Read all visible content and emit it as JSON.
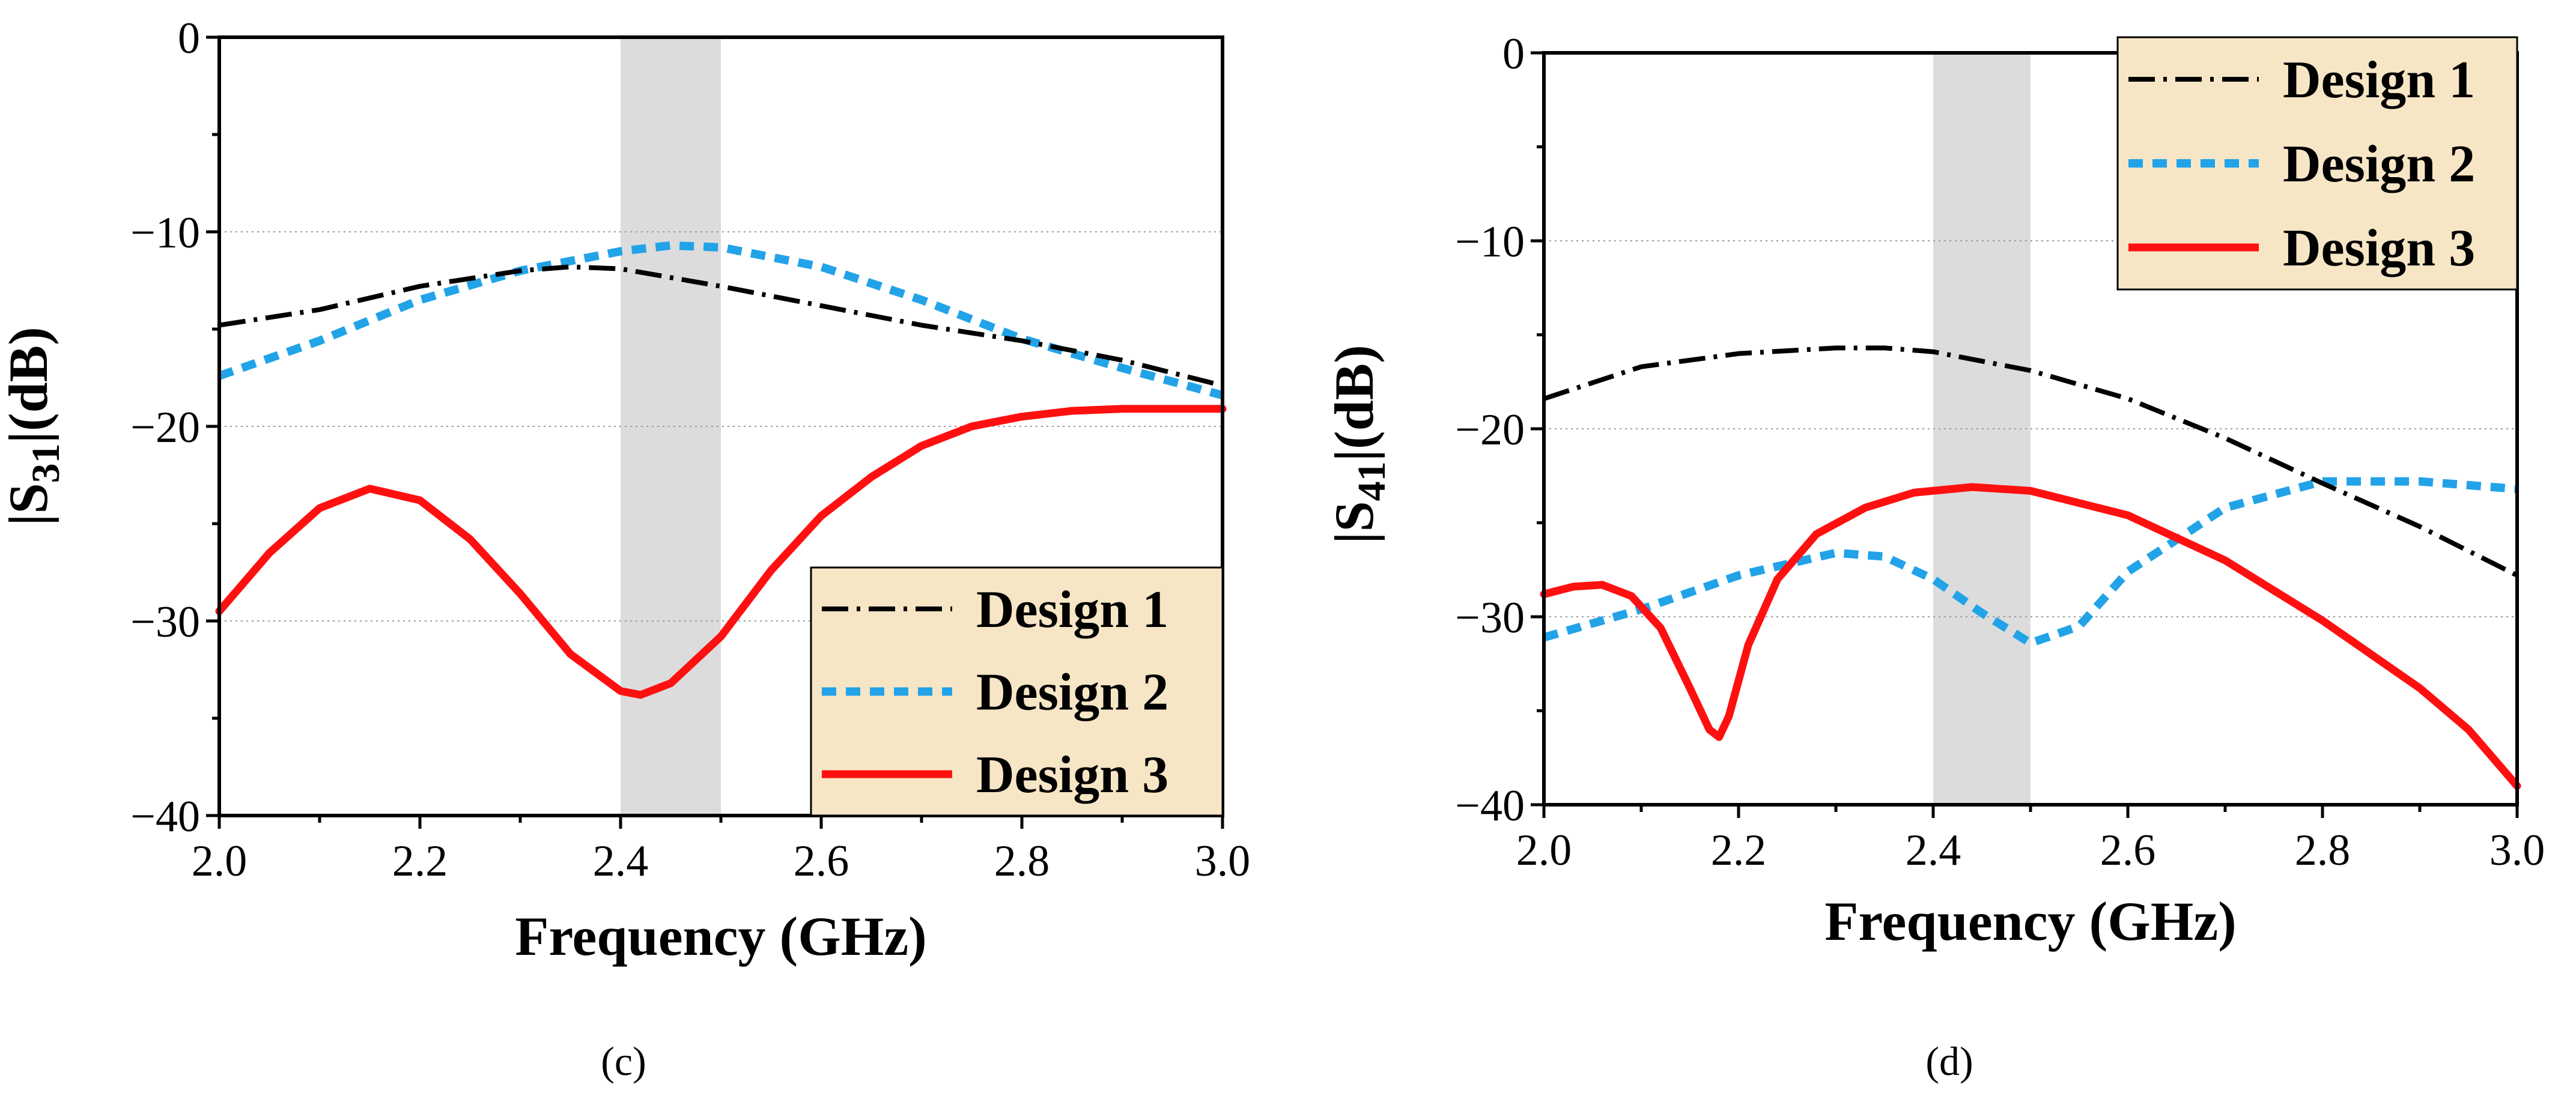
{
  "colors": {
    "design1": "#000000",
    "design2": "#22a3e8",
    "design3": "#ff1010",
    "band": "#dcdcdc",
    "legend_bg": "#f7e6c6"
  },
  "chart_data": [
    {
      "type": "line",
      "panel_label": "(c)",
      "xlabel": "Frequency (GHz)",
      "ylabel_parts": {
        "pre": "|S",
        "sub": "31",
        "post": "|(dB)"
      },
      "xlim": [
        2.0,
        3.0
      ],
      "ylim": [
        -40,
        0
      ],
      "xticks": [
        2.0,
        2.2,
        2.4,
        2.6,
        2.8,
        3.0
      ],
      "xtick_labels": [
        "2.0",
        "2.2",
        "2.4",
        "2.6",
        "2.8",
        "3.0"
      ],
      "yticks": [
        0,
        -10,
        -20,
        -30,
        -40
      ],
      "ytick_labels": [
        "0",
        "−10",
        "−20",
        "−30",
        "−40"
      ],
      "grid_y": [
        -10,
        -20,
        -30
      ],
      "highlight_band": [
        2.4,
        2.5
      ],
      "legend_position": "bottom-right",
      "series": [
        {
          "name": "Design 1",
          "style": "dash-dot",
          "x": [
            2.0,
            2.1,
            2.2,
            2.3,
            2.35,
            2.4,
            2.5,
            2.6,
            2.7,
            2.8,
            2.9,
            3.0
          ],
          "y": [
            -14.8,
            -14.0,
            -12.8,
            -12.0,
            -11.8,
            -11.9,
            -12.8,
            -13.8,
            -14.8,
            -15.6,
            -16.6,
            -17.9
          ]
        },
        {
          "name": "Design 2",
          "style": "dotted",
          "x": [
            2.0,
            2.1,
            2.2,
            2.3,
            2.4,
            2.45,
            2.5,
            2.6,
            2.7,
            2.8,
            2.9,
            3.0
          ],
          "y": [
            -17.4,
            -15.6,
            -13.5,
            -12.0,
            -11.0,
            -10.7,
            -10.8,
            -11.8,
            -13.5,
            -15.5,
            -17.0,
            -18.4
          ]
        },
        {
          "name": "Design 3",
          "style": "solid",
          "x": [
            2.0,
            2.05,
            2.1,
            2.15,
            2.2,
            2.25,
            2.3,
            2.35,
            2.4,
            2.42,
            2.45,
            2.5,
            2.55,
            2.6,
            2.65,
            2.7,
            2.75,
            2.8,
            2.85,
            2.9,
            2.95,
            3.0
          ],
          "y": [
            -29.5,
            -26.5,
            -24.2,
            -23.2,
            -23.8,
            -25.8,
            -28.6,
            -31.7,
            -33.6,
            -33.8,
            -33.2,
            -30.8,
            -27.4,
            -24.6,
            -22.6,
            -21.0,
            -20.0,
            -19.5,
            -19.2,
            -19.1,
            -19.1,
            -19.1
          ]
        }
      ]
    },
    {
      "type": "line",
      "panel_label": "(d)",
      "xlabel": "Frequency (GHz)",
      "ylabel_parts": {
        "pre": "|S",
        "sub": "41",
        "post": "|(dB)"
      },
      "xlim": [
        2.0,
        3.0
      ],
      "ylim": [
        -40,
        0
      ],
      "xticks": [
        2.0,
        2.2,
        2.4,
        2.6,
        2.8,
        3.0
      ],
      "xtick_labels": [
        "2.0",
        "2.2",
        "2.4",
        "2.6",
        "2.8",
        "3.0"
      ],
      "yticks": [
        0,
        -10,
        -20,
        -30,
        -40
      ],
      "ytick_labels": [
        "0",
        "−10",
        "−20",
        "−30",
        "−40"
      ],
      "grid_y": [
        -10,
        -20,
        -30
      ],
      "highlight_band": [
        2.4,
        2.5
      ],
      "legend_position": "top-right",
      "series": [
        {
          "name": "Design 1",
          "style": "dash-dot",
          "x": [
            2.0,
            2.1,
            2.2,
            2.3,
            2.35,
            2.4,
            2.5,
            2.6,
            2.7,
            2.8,
            2.9,
            3.0
          ],
          "y": [
            -18.4,
            -16.7,
            -16.0,
            -15.7,
            -15.7,
            -15.9,
            -16.9,
            -18.4,
            -20.5,
            -22.9,
            -25.2,
            -27.8
          ]
        },
        {
          "name": "Design 2",
          "style": "dotted",
          "x": [
            2.0,
            2.1,
            2.2,
            2.3,
            2.35,
            2.4,
            2.45,
            2.5,
            2.55,
            2.6,
            2.7,
            2.8,
            2.9,
            3.0
          ],
          "y": [
            -31.1,
            -29.6,
            -27.8,
            -26.6,
            -26.8,
            -28.0,
            -29.8,
            -31.4,
            -30.5,
            -27.6,
            -24.2,
            -22.8,
            -22.8,
            -23.2
          ]
        },
        {
          "name": "Design 3",
          "style": "solid",
          "x": [
            2.0,
            2.03,
            2.06,
            2.09,
            2.12,
            2.15,
            2.17,
            2.18,
            2.19,
            2.21,
            2.24,
            2.28,
            2.33,
            2.38,
            2.44,
            2.5,
            2.6,
            2.7,
            2.8,
            2.9,
            2.95,
            3.0
          ],
          "y": [
            -28.8,
            -28.4,
            -28.3,
            -28.9,
            -30.6,
            -33.8,
            -36.0,
            -36.4,
            -35.3,
            -31.5,
            -28.0,
            -25.6,
            -24.2,
            -23.4,
            -23.1,
            -23.3,
            -24.6,
            -27.0,
            -30.2,
            -33.8,
            -36.0,
            -39.0
          ]
        }
      ]
    }
  ]
}
